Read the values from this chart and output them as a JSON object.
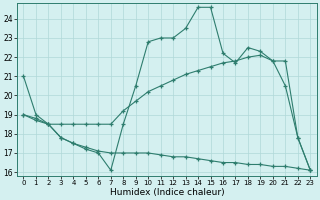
{
  "xlabel": "Humidex (Indice chaleur)",
  "background_color": "#d4f0f0",
  "grid_color": "#b0d8d8",
  "line_color": "#2e7d6e",
  "xlim": [
    -0.5,
    23.5
  ],
  "ylim": [
    15.8,
    24.8
  ],
  "yticks": [
    16,
    17,
    18,
    19,
    20,
    21,
    22,
    23,
    24
  ],
  "xticks": [
    0,
    1,
    2,
    3,
    4,
    5,
    6,
    7,
    8,
    9,
    10,
    11,
    12,
    13,
    14,
    15,
    16,
    17,
    18,
    19,
    20,
    21,
    22,
    23
  ],
  "line1_x": [
    0,
    1,
    2,
    3,
    4,
    5,
    6,
    7,
    8,
    9,
    10,
    11,
    12,
    13,
    14,
    15,
    16,
    17,
    18,
    19,
    20,
    21,
    22,
    23
  ],
  "line1_y": [
    21,
    19,
    18.5,
    17.8,
    17.5,
    17.2,
    17.0,
    16.1,
    18.5,
    20.5,
    22.8,
    23.0,
    23.0,
    23.5,
    24.6,
    24.6,
    22.2,
    21.7,
    22.5,
    22.3,
    21.8,
    20.5,
    17.8,
    16.1
  ],
  "line2_x": [
    0,
    1,
    2,
    3,
    4,
    5,
    6,
    7,
    8,
    9,
    10,
    11,
    12,
    13,
    14,
    15,
    16,
    17,
    18,
    19,
    20,
    21,
    22,
    23
  ],
  "line2_y": [
    19.0,
    18.7,
    18.5,
    18.5,
    18.5,
    18.5,
    18.5,
    18.5,
    19.2,
    19.7,
    20.2,
    20.5,
    20.8,
    21.1,
    21.3,
    21.5,
    21.7,
    21.8,
    22.0,
    22.1,
    21.8,
    21.8,
    17.8,
    16.1
  ],
  "line3_x": [
    0,
    1,
    2,
    3,
    4,
    5,
    6,
    7,
    8,
    9,
    10,
    11,
    12,
    13,
    14,
    15,
    16,
    17,
    18,
    19,
    20,
    21,
    22,
    23
  ],
  "line3_y": [
    19.0,
    18.8,
    18.5,
    17.8,
    17.5,
    17.3,
    17.1,
    17.0,
    17.0,
    17.0,
    17.0,
    16.9,
    16.8,
    16.8,
    16.7,
    16.6,
    16.5,
    16.5,
    16.4,
    16.4,
    16.3,
    16.3,
    16.2,
    16.1
  ]
}
